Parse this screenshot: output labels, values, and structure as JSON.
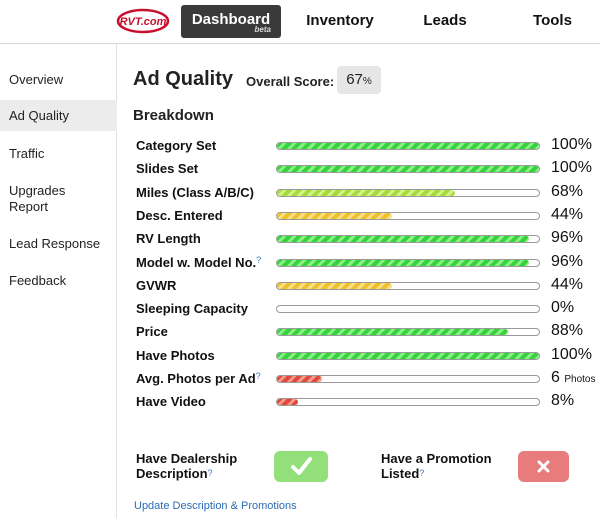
{
  "nav": {
    "logo_text": "RVT.com",
    "items": [
      {
        "label": "Dashboard",
        "badge": "beta",
        "active": true
      },
      {
        "label": "Inventory"
      },
      {
        "label": "Leads"
      },
      {
        "label": "Tools"
      }
    ]
  },
  "sidebar": {
    "items": [
      {
        "label": "Overview"
      },
      {
        "label": "Ad Quality",
        "active": true
      },
      {
        "label": "Traffic"
      },
      {
        "label": "Upgrades Report"
      },
      {
        "label": "Lead Response"
      },
      {
        "label": "Feedback"
      }
    ]
  },
  "main": {
    "title": "Ad Quality",
    "overall_label": "Overall Score:",
    "overall_value": "67",
    "overall_unit": "%",
    "breakdown_title": "Breakdown",
    "help_symbol": "?",
    "rows": [
      {
        "label": "Category Set",
        "percent": 100,
        "value": "100%",
        "color": "#35d43a",
        "tone": "green"
      },
      {
        "label": "Slides Set",
        "percent": 100,
        "value": "100%",
        "color": "#35d43a",
        "tone": "green"
      },
      {
        "label": "Miles (Class A/B/C)",
        "percent": 68,
        "value": "68%",
        "color": "#a6dc3a",
        "tone": "lime"
      },
      {
        "label": "Desc. Entered",
        "percent": 44,
        "value": "44%",
        "color": "#f0c22a",
        "tone": "yellow"
      },
      {
        "label": "RV Length",
        "percent": 96,
        "value": "96%",
        "color": "#35d43a",
        "tone": "green"
      },
      {
        "label": "Model w. Model No.",
        "percent": 96,
        "value": "96%",
        "help": true,
        "color": "#35d43a",
        "tone": "green"
      },
      {
        "label": "GVWR",
        "percent": 44,
        "value": "44%",
        "color": "#f0c22a",
        "tone": "yellow"
      },
      {
        "label": "Sleeping Capacity",
        "percent": 0,
        "value": "0%",
        "color": "#35d43a",
        "tone": "green"
      },
      {
        "label": "Price",
        "percent": 88,
        "value": "88%",
        "color": "#35d43a",
        "tone": "green"
      },
      {
        "label": "Have Photos",
        "percent": 100,
        "value": "100%",
        "color": "#35d43a",
        "tone": "green"
      },
      {
        "label": "Avg. Photos per Ad",
        "percent": 17,
        "value": "6",
        "unit": "Photos",
        "help": true,
        "color": "#e0483a",
        "tone": "red"
      },
      {
        "label": "Have Video",
        "percent": 8,
        "value": "8%",
        "color": "#e0483a",
        "tone": "red"
      }
    ],
    "dealership_desc_label_1": "Have Dealership",
    "dealership_desc_label_2": "Description",
    "dealership_desc_status": "check-icon",
    "promotion_label_1": "Have a Promotion",
    "promotion_label_2": "Listed",
    "promotion_status": "x-icon",
    "update_link": "Update Description & Promotions"
  }
}
